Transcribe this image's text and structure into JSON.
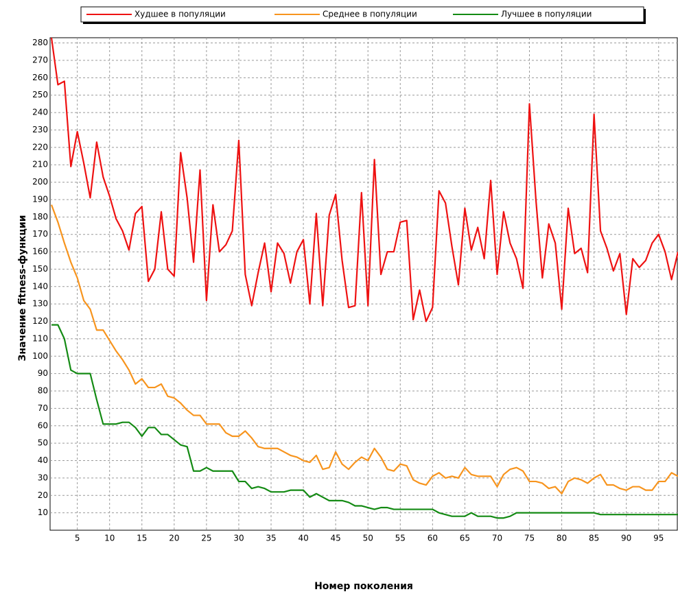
{
  "chart_data": {
    "type": "line",
    "x_label": "Номер поколения",
    "y_label": "Значение fitness-функции",
    "x": [
      1,
      2,
      3,
      4,
      5,
      6,
      7,
      8,
      9,
      10,
      11,
      12,
      13,
      14,
      15,
      16,
      17,
      18,
      19,
      20,
      21,
      22,
      23,
      24,
      25,
      26,
      27,
      28,
      29,
      30,
      31,
      32,
      33,
      34,
      35,
      36,
      37,
      38,
      39,
      40,
      41,
      42,
      43,
      44,
      45,
      46,
      47,
      48,
      49,
      50,
      51,
      52,
      53,
      54,
      55,
      56,
      57,
      58,
      59,
      60,
      61,
      62,
      63,
      64,
      65,
      66,
      67,
      68,
      69,
      70,
      71,
      72,
      73,
      74,
      75,
      76,
      77,
      78,
      79,
      80,
      81,
      82,
      83,
      84,
      85,
      86,
      87,
      88,
      89,
      90,
      91,
      92,
      93,
      94,
      95,
      96,
      97,
      98
    ],
    "series": [
      {
        "name": "Худшее в популяции",
        "color": "#ee1111",
        "values": [
          283,
          256,
          258,
          209,
          229,
          211,
          191,
          223,
          203,
          192,
          179,
          172,
          161,
          182,
          186,
          143,
          150,
          183,
          150,
          146,
          217,
          191,
          154,
          207,
          132,
          187,
          160,
          164,
          172,
          224,
          147,
          129,
          148,
          165,
          137,
          165,
          159,
          142,
          160,
          167,
          130,
          182,
          129,
          181,
          193,
          155,
          128,
          129,
          194,
          129,
          213,
          147,
          160,
          160,
          177,
          178,
          121,
          138,
          120,
          128,
          195,
          188,
          163,
          141,
          185,
          161,
          174,
          156,
          201,
          147,
          183,
          165,
          156,
          139,
          245,
          190,
          145,
          176,
          165,
          127,
          185,
          159,
          162,
          148,
          239,
          172,
          162,
          149,
          159,
          124,
          156,
          151,
          155,
          165,
          170,
          160,
          144,
          160
        ]
      },
      {
        "name": "Среднее в популяции",
        "color": "#f7941d",
        "values": [
          187,
          177,
          165,
          154,
          145,
          132,
          127,
          115,
          115,
          109,
          103,
          98,
          92,
          84,
          87,
          82,
          82,
          84,
          77,
          76,
          73,
          69,
          66,
          66,
          61,
          61,
          61,
          56,
          54,
          54,
          57,
          53,
          48,
          47,
          47,
          47,
          45,
          43,
          42,
          40,
          39,
          43,
          35,
          36,
          45,
          38,
          35,
          39,
          42,
          40,
          47,
          42,
          35,
          34,
          38,
          37,
          29,
          27,
          26,
          31,
          33,
          30,
          31,
          30,
          36,
          32,
          31,
          31,
          31,
          25,
          32,
          35,
          36,
          34,
          28,
          28,
          27,
          24,
          25,
          21,
          28,
          30,
          29,
          27,
          30,
          32,
          26,
          26,
          24,
          23,
          25,
          25,
          23,
          23,
          28,
          28,
          33,
          31
        ]
      },
      {
        "name": "Лучшее в популяции",
        "color": "#138a13",
        "values": [
          118,
          118,
          110,
          92,
          90,
          90,
          90,
          75,
          61,
          61,
          61,
          62,
          62,
          59,
          54,
          59,
          59,
          55,
          55,
          52,
          49,
          48,
          34,
          34,
          36,
          34,
          34,
          34,
          34,
          28,
          28,
          24,
          25,
          24,
          22,
          22,
          22,
          23,
          23,
          23,
          19,
          21,
          19,
          17,
          17,
          17,
          16,
          14,
          14,
          13,
          12,
          13,
          13,
          12,
          12,
          12,
          12,
          12,
          12,
          12,
          10,
          9,
          8,
          8,
          8,
          10,
          8,
          8,
          8,
          7,
          7,
          8,
          10,
          10,
          10,
          10,
          10,
          10,
          10,
          10,
          10,
          10,
          10,
          10,
          10,
          9,
          9,
          9,
          9,
          9,
          9,
          9,
          9,
          9,
          9,
          9,
          9,
          9
        ]
      }
    ],
    "xlim": [
      1,
      98
    ],
    "ylim": [
      0,
      283
    ],
    "xticks": [
      5,
      10,
      15,
      20,
      25,
      30,
      35,
      40,
      45,
      50,
      55,
      60,
      65,
      70,
      75,
      80,
      85,
      90,
      95
    ],
    "yticks": [
      10,
      20,
      30,
      40,
      50,
      60,
      70,
      80,
      90,
      100,
      110,
      120,
      130,
      140,
      150,
      160,
      170,
      180,
      190,
      200,
      210,
      220,
      230,
      240,
      250,
      260,
      270,
      280
    ],
    "grid": true
  }
}
